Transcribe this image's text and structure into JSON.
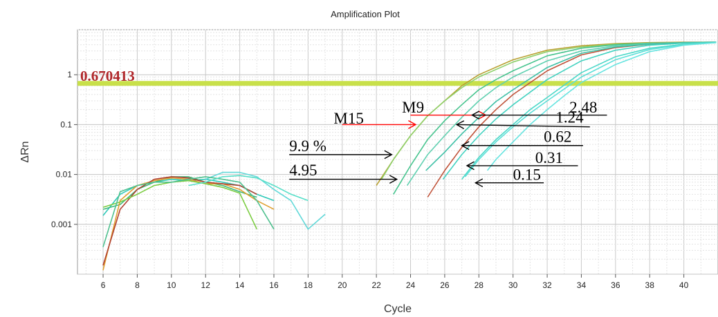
{
  "chart_data": {
    "type": "line",
    "title": "Amplification Plot",
    "xlabel": "Cycle",
    "ylabel": "ΔRn",
    "yscale": "log",
    "xlim": [
      4.5,
      42
    ],
    "ylim": [
      0.0001,
      8
    ],
    "x_ticks": [
      "6",
      "8",
      "10",
      "12",
      "14",
      "16",
      "18",
      "20",
      "22",
      "24",
      "26",
      "28",
      "30",
      "32",
      "34",
      "36",
      "38",
      "40"
    ],
    "y_ticks": [
      {
        "value": 1,
        "label": "1"
      },
      {
        "value": 0.1,
        "label": "0.1"
      },
      {
        "value": 0.01,
        "label": "0.01"
      },
      {
        "value": 0.001,
        "label": "0.001"
      }
    ],
    "grid": true,
    "threshold": {
      "value": 0.67,
      "label": "0.670413",
      "color": "#c8e04a"
    },
    "baseline_series": [
      {
        "color": "#2ec9b8",
        "x": [
          6,
          7,
          8,
          9,
          10,
          11,
          12,
          13,
          14,
          15,
          16
        ],
        "y": [
          0.0015,
          0.004,
          0.006,
          0.007,
          0.008,
          0.0075,
          0.008,
          0.007,
          0.006,
          0.004,
          0.003
        ]
      },
      {
        "color": "#3fb87a",
        "x": [
          6,
          7,
          8,
          9,
          10,
          11,
          12,
          13,
          14,
          15
        ],
        "y": [
          0.002,
          0.0025,
          0.005,
          0.007,
          0.009,
          0.009,
          0.007,
          0.006,
          0.0045,
          0.0035
        ]
      },
      {
        "color": "#e0a030",
        "x": [
          6,
          7,
          8,
          9,
          10,
          11,
          12,
          13,
          14,
          15,
          16
        ],
        "y": [
          0.00012,
          0.003,
          0.006,
          0.0075,
          0.0085,
          0.008,
          0.0065,
          0.0065,
          0.005,
          0.003,
          0.002
        ]
      },
      {
        "color": "#b04030",
        "x": [
          6,
          7,
          8,
          9,
          10,
          11,
          12,
          13,
          14,
          15
        ],
        "y": [
          0.00015,
          0.002,
          0.005,
          0.008,
          0.009,
          0.0085,
          0.007,
          0.0065,
          0.006,
          0.004
        ]
      },
      {
        "color": "#7acc40",
        "x": [
          6,
          7,
          8,
          9,
          10,
          11,
          12,
          13,
          14,
          15
        ],
        "y": [
          0.0022,
          0.0028,
          0.004,
          0.006,
          0.007,
          0.0075,
          0.0065,
          0.0055,
          0.0042,
          0.0008
        ]
      },
      {
        "color": "#60d8d8",
        "x": [
          12,
          13,
          14,
          15,
          16,
          17,
          18,
          19
        ],
        "y": [
          0.008,
          0.011,
          0.011,
          0.009,
          0.005,
          0.003,
          0.0008,
          0.0016
        ]
      },
      {
        "color": "#4ec08e",
        "x": [
          6,
          7,
          8,
          9,
          10,
          11,
          12,
          13,
          14,
          15,
          16
        ],
        "y": [
          0.00035,
          0.0045,
          0.006,
          0.007,
          0.007,
          0.008,
          0.009,
          0.008,
          0.007,
          0.003,
          0.0008
        ]
      },
      {
        "color": "#55dfc8",
        "x": [
          11,
          12,
          13,
          14,
          15,
          16,
          17,
          18
        ],
        "y": [
          0.006,
          0.007,
          0.009,
          0.0095,
          0.0085,
          0.006,
          0.004,
          0.003
        ]
      }
    ],
    "amplification_series": [
      {
        "color": "#b8a030",
        "x": [
          22,
          23,
          24,
          25,
          26,
          27,
          28,
          30,
          32,
          34,
          36,
          38,
          40,
          41.9
        ],
        "y": [
          0.006,
          0.02,
          0.06,
          0.15,
          0.3,
          0.6,
          1.0,
          2.0,
          3.1,
          3.8,
          4.2,
          4.4,
          4.5,
          4.5
        ]
      },
      {
        "color": "#8ed06a",
        "x": [
          22.3,
          23,
          24,
          25,
          26,
          27,
          28,
          30,
          32,
          34,
          36,
          38,
          40,
          41.9
        ],
        "y": [
          0.008,
          0.02,
          0.06,
          0.15,
          0.3,
          0.55,
          0.9,
          1.8,
          2.9,
          3.6,
          4.1,
          4.3,
          4.4,
          4.5
        ]
      },
      {
        "color": "#46c48e",
        "x": [
          23,
          24,
          25,
          26,
          27,
          28,
          29,
          30,
          32,
          34,
          36,
          38,
          40,
          41.9
        ],
        "y": [
          0.004,
          0.015,
          0.05,
          0.12,
          0.25,
          0.5,
          0.8,
          1.2,
          2.4,
          3.4,
          4.0,
          4.3,
          4.4,
          4.5
        ]
      },
      {
        "color": "#5fd0b0",
        "x": [
          23.8,
          25,
          26,
          27,
          28,
          29,
          30,
          32,
          34,
          36,
          38,
          40,
          41.9
        ],
        "y": [
          0.006,
          0.025,
          0.06,
          0.14,
          0.3,
          0.55,
          0.9,
          1.9,
          3.0,
          3.8,
          4.2,
          4.4,
          4.5
        ]
      },
      {
        "color": "#c0533a",
        "x": [
          25,
          26,
          27,
          28,
          29,
          30,
          32,
          34,
          36,
          38,
          40,
          41.9
        ],
        "y": [
          0.0035,
          0.012,
          0.035,
          0.09,
          0.2,
          0.4,
          1.2,
          2.5,
          3.5,
          4.1,
          4.4,
          4.5
        ]
      },
      {
        "color": "#3cc0a6",
        "x": [
          24.9,
          26,
          27,
          28,
          29,
          30,
          32,
          34,
          36,
          38,
          40,
          41.9
        ],
        "y": [
          0.012,
          0.028,
          0.065,
          0.14,
          0.29,
          0.5,
          1.4,
          2.7,
          3.6,
          4.1,
          4.4,
          4.5
        ]
      },
      {
        "color": "#42d2c0",
        "x": [
          25.9,
          27,
          28,
          29,
          30,
          32,
          34,
          36,
          38,
          40,
          41.9
        ],
        "y": [
          0.008,
          0.025,
          0.06,
          0.13,
          0.25,
          0.8,
          1.9,
          3.1,
          3.9,
          4.3,
          4.5
        ]
      },
      {
        "color": "#4ad8c8",
        "x": [
          27,
          28,
          29,
          30,
          31,
          32,
          34,
          36,
          38,
          40,
          41.9
        ],
        "y": [
          0.008,
          0.022,
          0.05,
          0.1,
          0.2,
          0.35,
          1.1,
          2.3,
          3.4,
          4.1,
          4.4
        ]
      },
      {
        "color": "#5ce0d8",
        "x": [
          27.2,
          28,
          29,
          30,
          31,
          32,
          34,
          36,
          38,
          40,
          41.9
        ],
        "y": [
          0.009,
          0.02,
          0.045,
          0.09,
          0.17,
          0.3,
          0.9,
          2.0,
          3.2,
          4.0,
          4.4
        ]
      },
      {
        "color": "#66e4e0",
        "x": [
          28.5,
          29,
          30,
          31,
          32,
          33,
          34,
          36,
          38,
          40,
          41.9
        ],
        "y": [
          0.012,
          0.02,
          0.045,
          0.1,
          0.2,
          0.38,
          0.7,
          1.6,
          2.9,
          3.9,
          4.4
        ]
      }
    ],
    "annotations": [
      {
        "text": "M9",
        "color": "#000000",
        "arrow_color": "#ff0000",
        "label_at": [
          23.5,
          0.175
        ],
        "arrow_from": [
          24.0,
          0.155
        ],
        "arrow_to": [
          28.4,
          0.155
        ]
      },
      {
        "text": "M15",
        "color": "#000000",
        "arrow_color": "#ff0000",
        "label_at": [
          19.5,
          0.105
        ],
        "arrow_from": [
          20.0,
          0.1
        ],
        "arrow_to": [
          24.3,
          0.1
        ]
      },
      {
        "text": "2.48",
        "color": "#000000",
        "arrow_color": "#000000",
        "label_at": [
          33.3,
          0.175
        ],
        "arrow_from": [
          35.5,
          0.155
        ],
        "arrow_to": [
          27.6,
          0.155
        ]
      },
      {
        "text": "1.24",
        "color": "#000000",
        "arrow_color": "#000000",
        "label_at": [
          32.5,
          0.11
        ],
        "arrow_from": [
          34.5,
          0.09
        ],
        "arrow_to": [
          26.7,
          0.1
        ]
      },
      {
        "text": "0.62",
        "color": "#000000",
        "arrow_color": "#000000",
        "label_at": [
          31.8,
          0.045
        ],
        "arrow_from": [
          34.1,
          0.038
        ],
        "arrow_to": [
          27.0,
          0.038
        ]
      },
      {
        "text": "0.31",
        "color": "#000000",
        "arrow_color": "#000000",
        "label_at": [
          31.3,
          0.017
        ],
        "arrow_from": [
          33.8,
          0.015
        ],
        "arrow_to": [
          27.3,
          0.015
        ]
      },
      {
        "text": "0.15",
        "color": "#000000",
        "arrow_color": "#000000",
        "label_at": [
          30.0,
          0.0078
        ],
        "arrow_from": [
          31.8,
          0.0068
        ],
        "arrow_to": [
          27.8,
          0.0068
        ]
      },
      {
        "text": "9.9 %",
        "color": "#000000",
        "arrow_color": "#000000",
        "label_at": [
          16.9,
          0.029
        ],
        "arrow_from": [
          16.9,
          0.025
        ],
        "arrow_to": [
          22.9,
          0.025
        ]
      },
      {
        "text": "4.95",
        "color": "#000000",
        "arrow_color": "#000000",
        "label_at": [
          16.9,
          0.0095
        ],
        "arrow_from": [
          16.9,
          0.008
        ],
        "arrow_to": [
          23.2,
          0.008
        ]
      }
    ]
  }
}
